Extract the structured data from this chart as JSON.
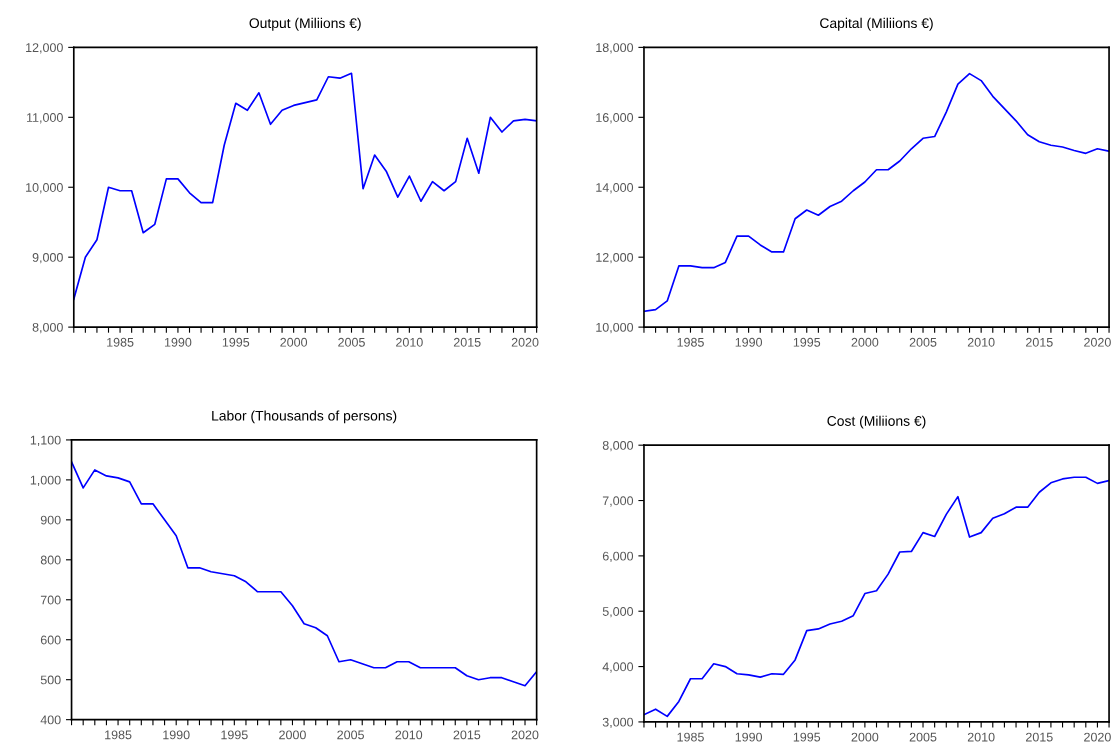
{
  "chart_data": [
    {
      "type": "line",
      "title": "Output (Miliions €)",
      "x": [
        1981,
        1982,
        1983,
        1984,
        1985,
        1986,
        1987,
        1988,
        1989,
        1990,
        1991,
        1992,
        1993,
        1994,
        1995,
        1996,
        1997,
        1998,
        1999,
        2000,
        2001,
        2002,
        2003,
        2004,
        2005,
        2006,
        2007,
        2008,
        2009,
        2010,
        2011,
        2012,
        2013,
        2014,
        2015,
        2016,
        2017,
        2018,
        2019,
        2020,
        2021
      ],
      "series": [
        {
          "color": "#0000ff",
          "values": [
            8400,
            9000,
            9250,
            10000,
            9950,
            9950,
            9350,
            9470,
            10120,
            10120,
            9920,
            9780,
            9780,
            10600,
            11200,
            11100,
            11350,
            10900,
            11100,
            11170,
            11210,
            11250,
            11580,
            11560,
            11630,
            9980,
            10460,
            10230,
            9860,
            10160,
            9800,
            10080,
            9950,
            10080,
            10700,
            10200,
            11000,
            10790,
            10950,
            10970,
            10950
          ]
        }
      ],
      "xlim": [
        1981,
        2021
      ],
      "xticks": [
        {
          "value": 1981,
          "label": null
        },
        {
          "value": 1982,
          "label": null
        },
        {
          "value": 1983,
          "label": null
        },
        {
          "value": 1984,
          "label": null
        },
        1985,
        {
          "value": 1986,
          "label": null
        },
        {
          "value": 1987,
          "label": null
        },
        {
          "value": 1988,
          "label": null
        },
        {
          "value": 1989,
          "label": null
        },
        1990,
        {
          "value": 1991,
          "label": null
        },
        {
          "value": 1992,
          "label": null
        },
        {
          "value": 1993,
          "label": null
        },
        {
          "value": 1994,
          "label": null
        },
        1995,
        {
          "value": 1996,
          "label": null
        },
        {
          "value": 1997,
          "label": null
        },
        {
          "value": 1998,
          "label": null
        },
        {
          "value": 1999,
          "label": null
        },
        2000,
        {
          "value": 2001,
          "label": null
        },
        {
          "value": 2002,
          "label": null
        },
        {
          "value": 2003,
          "label": null
        },
        {
          "value": 2004,
          "label": null
        },
        2005,
        {
          "value": 2006,
          "label": null
        },
        {
          "value": 2007,
          "label": null
        },
        {
          "value": 2008,
          "label": null
        },
        {
          "value": 2009,
          "label": null
        },
        2010,
        {
          "value": 2011,
          "label": null
        },
        {
          "value": 2012,
          "label": null
        },
        {
          "value": 2013,
          "label": null
        },
        {
          "value": 2014,
          "label": null
        },
        2015,
        {
          "value": 2016,
          "label": null
        },
        {
          "value": 2017,
          "label": null
        },
        {
          "value": 2018,
          "label": null
        },
        {
          "value": 2019,
          "label": null
        },
        2020,
        {
          "value": 2021,
          "label": null
        }
      ],
      "ylim": [
        8000,
        12000
      ],
      "yticks": [
        {
          "value": 8000,
          "label": "8,000"
        },
        {
          "value": 9000,
          "label": "9,000"
        },
        {
          "value": 10000,
          "label": "10,000"
        },
        {
          "value": 11000,
          "label": "11,000"
        },
        {
          "value": 12000,
          "label": "12,000"
        }
      ]
    },
    {
      "type": "line",
      "title": "Capital (Miliions €)",
      "x": [
        1981,
        1982,
        1983,
        1984,
        1985,
        1986,
        1987,
        1988,
        1989,
        1990,
        1991,
        1992,
        1993,
        1994,
        1995,
        1996,
        1997,
        1998,
        1999,
        2000,
        2001,
        2002,
        2003,
        2004,
        2005,
        2006,
        2007,
        2008,
        2009,
        2010,
        2011,
        2012,
        2013,
        2014,
        2015,
        2016,
        2017,
        2018,
        2019,
        2020,
        2021
      ],
      "series": [
        {
          "color": "#0000ff",
          "values": [
            10450,
            10500,
            10750,
            11750,
            11750,
            11700,
            11700,
            11850,
            12600,
            12600,
            12350,
            12150,
            12150,
            13100,
            13350,
            13200,
            13450,
            13600,
            13900,
            14150,
            14500,
            14500,
            14750,
            15100,
            15400,
            15450,
            16150,
            16950,
            17250,
            17050,
            16600,
            16250,
            15900,
            15500,
            15300,
            15200,
            15150,
            15050,
            14970,
            15100,
            15030
          ]
        }
      ],
      "xlim": [
        1981,
        2021
      ],
      "xticks": [
        {
          "value": 1981,
          "label": null
        },
        {
          "value": 1982,
          "label": null
        },
        {
          "value": 1983,
          "label": null
        },
        {
          "value": 1984,
          "label": null
        },
        1985,
        {
          "value": 1986,
          "label": null
        },
        {
          "value": 1987,
          "label": null
        },
        {
          "value": 1988,
          "label": null
        },
        {
          "value": 1989,
          "label": null
        },
        1990,
        {
          "value": 1991,
          "label": null
        },
        {
          "value": 1992,
          "label": null
        },
        {
          "value": 1993,
          "label": null
        },
        {
          "value": 1994,
          "label": null
        },
        1995,
        {
          "value": 1996,
          "label": null
        },
        {
          "value": 1997,
          "label": null
        },
        {
          "value": 1998,
          "label": null
        },
        {
          "value": 1999,
          "label": null
        },
        2000,
        {
          "value": 2001,
          "label": null
        },
        {
          "value": 2002,
          "label": null
        },
        {
          "value": 2003,
          "label": null
        },
        {
          "value": 2004,
          "label": null
        },
        2005,
        {
          "value": 2006,
          "label": null
        },
        {
          "value": 2007,
          "label": null
        },
        {
          "value": 2008,
          "label": null
        },
        {
          "value": 2009,
          "label": null
        },
        2010,
        {
          "value": 2011,
          "label": null
        },
        {
          "value": 2012,
          "label": null
        },
        {
          "value": 2013,
          "label": null
        },
        {
          "value": 2014,
          "label": null
        },
        2015,
        {
          "value": 2016,
          "label": null
        },
        {
          "value": 2017,
          "label": null
        },
        {
          "value": 2018,
          "label": null
        },
        {
          "value": 2019,
          "label": null
        },
        2020,
        {
          "value": 2021,
          "label": null
        }
      ],
      "ylim": [
        10000,
        18000
      ],
      "yticks": [
        {
          "value": 10000,
          "label": "10,000"
        },
        {
          "value": 12000,
          "label": "12,000"
        },
        {
          "value": 14000,
          "label": "14,000"
        },
        {
          "value": 16000,
          "label": "16,000"
        },
        {
          "value": 18000,
          "label": "18,000"
        }
      ]
    },
    {
      "type": "line",
      "title": "Labor (Thousands of persons)",
      "x": [
        1981,
        1982,
        1983,
        1984,
        1985,
        1986,
        1987,
        1988,
        1989,
        1990,
        1991,
        1992,
        1993,
        1994,
        1995,
        1996,
        1997,
        1998,
        1999,
        2000,
        2001,
        2002,
        2003,
        2004,
        2005,
        2006,
        2007,
        2008,
        2009,
        2010,
        2011,
        2012,
        2013,
        2014,
        2015,
        2016,
        2017,
        2018,
        2019,
        2020,
        2021
      ],
      "series": [
        {
          "color": "#0000ff",
          "values": [
            1045,
            980,
            1025,
            1010,
            1005,
            995,
            940,
            940,
            900,
            860,
            780,
            780,
            770,
            765,
            760,
            745,
            720,
            720,
            720,
            685,
            640,
            630,
            610,
            545,
            550,
            540,
            530,
            530,
            545,
            545,
            530,
            530,
            530,
            530,
            510,
            500,
            505,
            505,
            495,
            485,
            520
          ]
        }
      ],
      "xlim": [
        1981,
        2021
      ],
      "xticks": [
        {
          "value": 1981,
          "label": null
        },
        {
          "value": 1982,
          "label": null
        },
        {
          "value": 1983,
          "label": null
        },
        {
          "value": 1984,
          "label": null
        },
        1985,
        {
          "value": 1986,
          "label": null
        },
        {
          "value": 1987,
          "label": null
        },
        {
          "value": 1988,
          "label": null
        },
        {
          "value": 1989,
          "label": null
        },
        1990,
        {
          "value": 1991,
          "label": null
        },
        {
          "value": 1992,
          "label": null
        },
        {
          "value": 1993,
          "label": null
        },
        {
          "value": 1994,
          "label": null
        },
        1995,
        {
          "value": 1996,
          "label": null
        },
        {
          "value": 1997,
          "label": null
        },
        {
          "value": 1998,
          "label": null
        },
        {
          "value": 1999,
          "label": null
        },
        2000,
        {
          "value": 2001,
          "label": null
        },
        {
          "value": 2002,
          "label": null
        },
        {
          "value": 2003,
          "label": null
        },
        {
          "value": 2004,
          "label": null
        },
        2005,
        {
          "value": 2006,
          "label": null
        },
        {
          "value": 2007,
          "label": null
        },
        {
          "value": 2008,
          "label": null
        },
        {
          "value": 2009,
          "label": null
        },
        2010,
        {
          "value": 2011,
          "label": null
        },
        {
          "value": 2012,
          "label": null
        },
        {
          "value": 2013,
          "label": null
        },
        {
          "value": 2014,
          "label": null
        },
        2015,
        {
          "value": 2016,
          "label": null
        },
        {
          "value": 2017,
          "label": null
        },
        {
          "value": 2018,
          "label": null
        },
        {
          "value": 2019,
          "label": null
        },
        2020,
        {
          "value": 2021,
          "label": null
        }
      ],
      "ylim": [
        400,
        1100
      ],
      "yticks": [
        400,
        500,
        600,
        700,
        800,
        900,
        {
          "value": 1000,
          "label": "1,000"
        },
        {
          "value": 1100,
          "label": "1,100"
        }
      ]
    },
    {
      "type": "line",
      "title": "Cost (Miliions €)",
      "x": [
        1981,
        1982,
        1983,
        1984,
        1985,
        1986,
        1987,
        1988,
        1989,
        1990,
        1991,
        1992,
        1993,
        1994,
        1995,
        1996,
        1997,
        1998,
        1999,
        2000,
        2001,
        2002,
        2003,
        2004,
        2005,
        2006,
        2007,
        2008,
        2009,
        2010,
        2011,
        2012,
        2013,
        2014,
        2015,
        2016,
        2017,
        2018,
        2019,
        2020,
        2021
      ],
      "series": [
        {
          "color": "#0000ff",
          "values": [
            3130,
            3230,
            3100,
            3370,
            3780,
            3780,
            4050,
            4000,
            3870,
            3850,
            3810,
            3870,
            3860,
            4120,
            4650,
            4680,
            4770,
            4820,
            4920,
            5320,
            5370,
            5670,
            6070,
            6080,
            6420,
            6350,
            6750,
            7070,
            6340,
            6420,
            6680,
            6760,
            6880,
            6880,
            7150,
            7320,
            7390,
            7420,
            7420,
            7310,
            7360
          ]
        }
      ],
      "xlim": [
        1981,
        2021
      ],
      "xticks": [
        {
          "value": 1981,
          "label": null
        },
        {
          "value": 1982,
          "label": null
        },
        {
          "value": 1983,
          "label": null
        },
        {
          "value": 1984,
          "label": null
        },
        1985,
        {
          "value": 1986,
          "label": null
        },
        {
          "value": 1987,
          "label": null
        },
        {
          "value": 1988,
          "label": null
        },
        {
          "value": 1989,
          "label": null
        },
        1990,
        {
          "value": 1991,
          "label": null
        },
        {
          "value": 1992,
          "label": null
        },
        {
          "value": 1993,
          "label": null
        },
        {
          "value": 1994,
          "label": null
        },
        1995,
        {
          "value": 1996,
          "label": null
        },
        {
          "value": 1997,
          "label": null
        },
        {
          "value": 1998,
          "label": null
        },
        {
          "value": 1999,
          "label": null
        },
        2000,
        {
          "value": 2001,
          "label": null
        },
        {
          "value": 2002,
          "label": null
        },
        {
          "value": 2003,
          "label": null
        },
        {
          "value": 2004,
          "label": null
        },
        2005,
        {
          "value": 2006,
          "label": null
        },
        {
          "value": 2007,
          "label": null
        },
        {
          "value": 2008,
          "label": null
        },
        {
          "value": 2009,
          "label": null
        },
        2010,
        {
          "value": 2011,
          "label": null
        },
        {
          "value": 2012,
          "label": null
        },
        {
          "value": 2013,
          "label": null
        },
        {
          "value": 2014,
          "label": null
        },
        2015,
        {
          "value": 2016,
          "label": null
        },
        {
          "value": 2017,
          "label": null
        },
        {
          "value": 2018,
          "label": null
        },
        {
          "value": 2019,
          "label": null
        },
        2020,
        {
          "value": 2021,
          "label": null
        }
      ],
      "ylim": [
        3000,
        8000
      ],
      "yticks": [
        {
          "value": 3000,
          "label": "3,000"
        },
        {
          "value": 4000,
          "label": "4,000"
        },
        {
          "value": 5000,
          "label": "5,000"
        },
        {
          "value": 6000,
          "label": "6,000"
        },
        {
          "value": 7000,
          "label": "7,000"
        },
        {
          "value": 8000,
          "label": "8,000"
        }
      ]
    }
  ]
}
